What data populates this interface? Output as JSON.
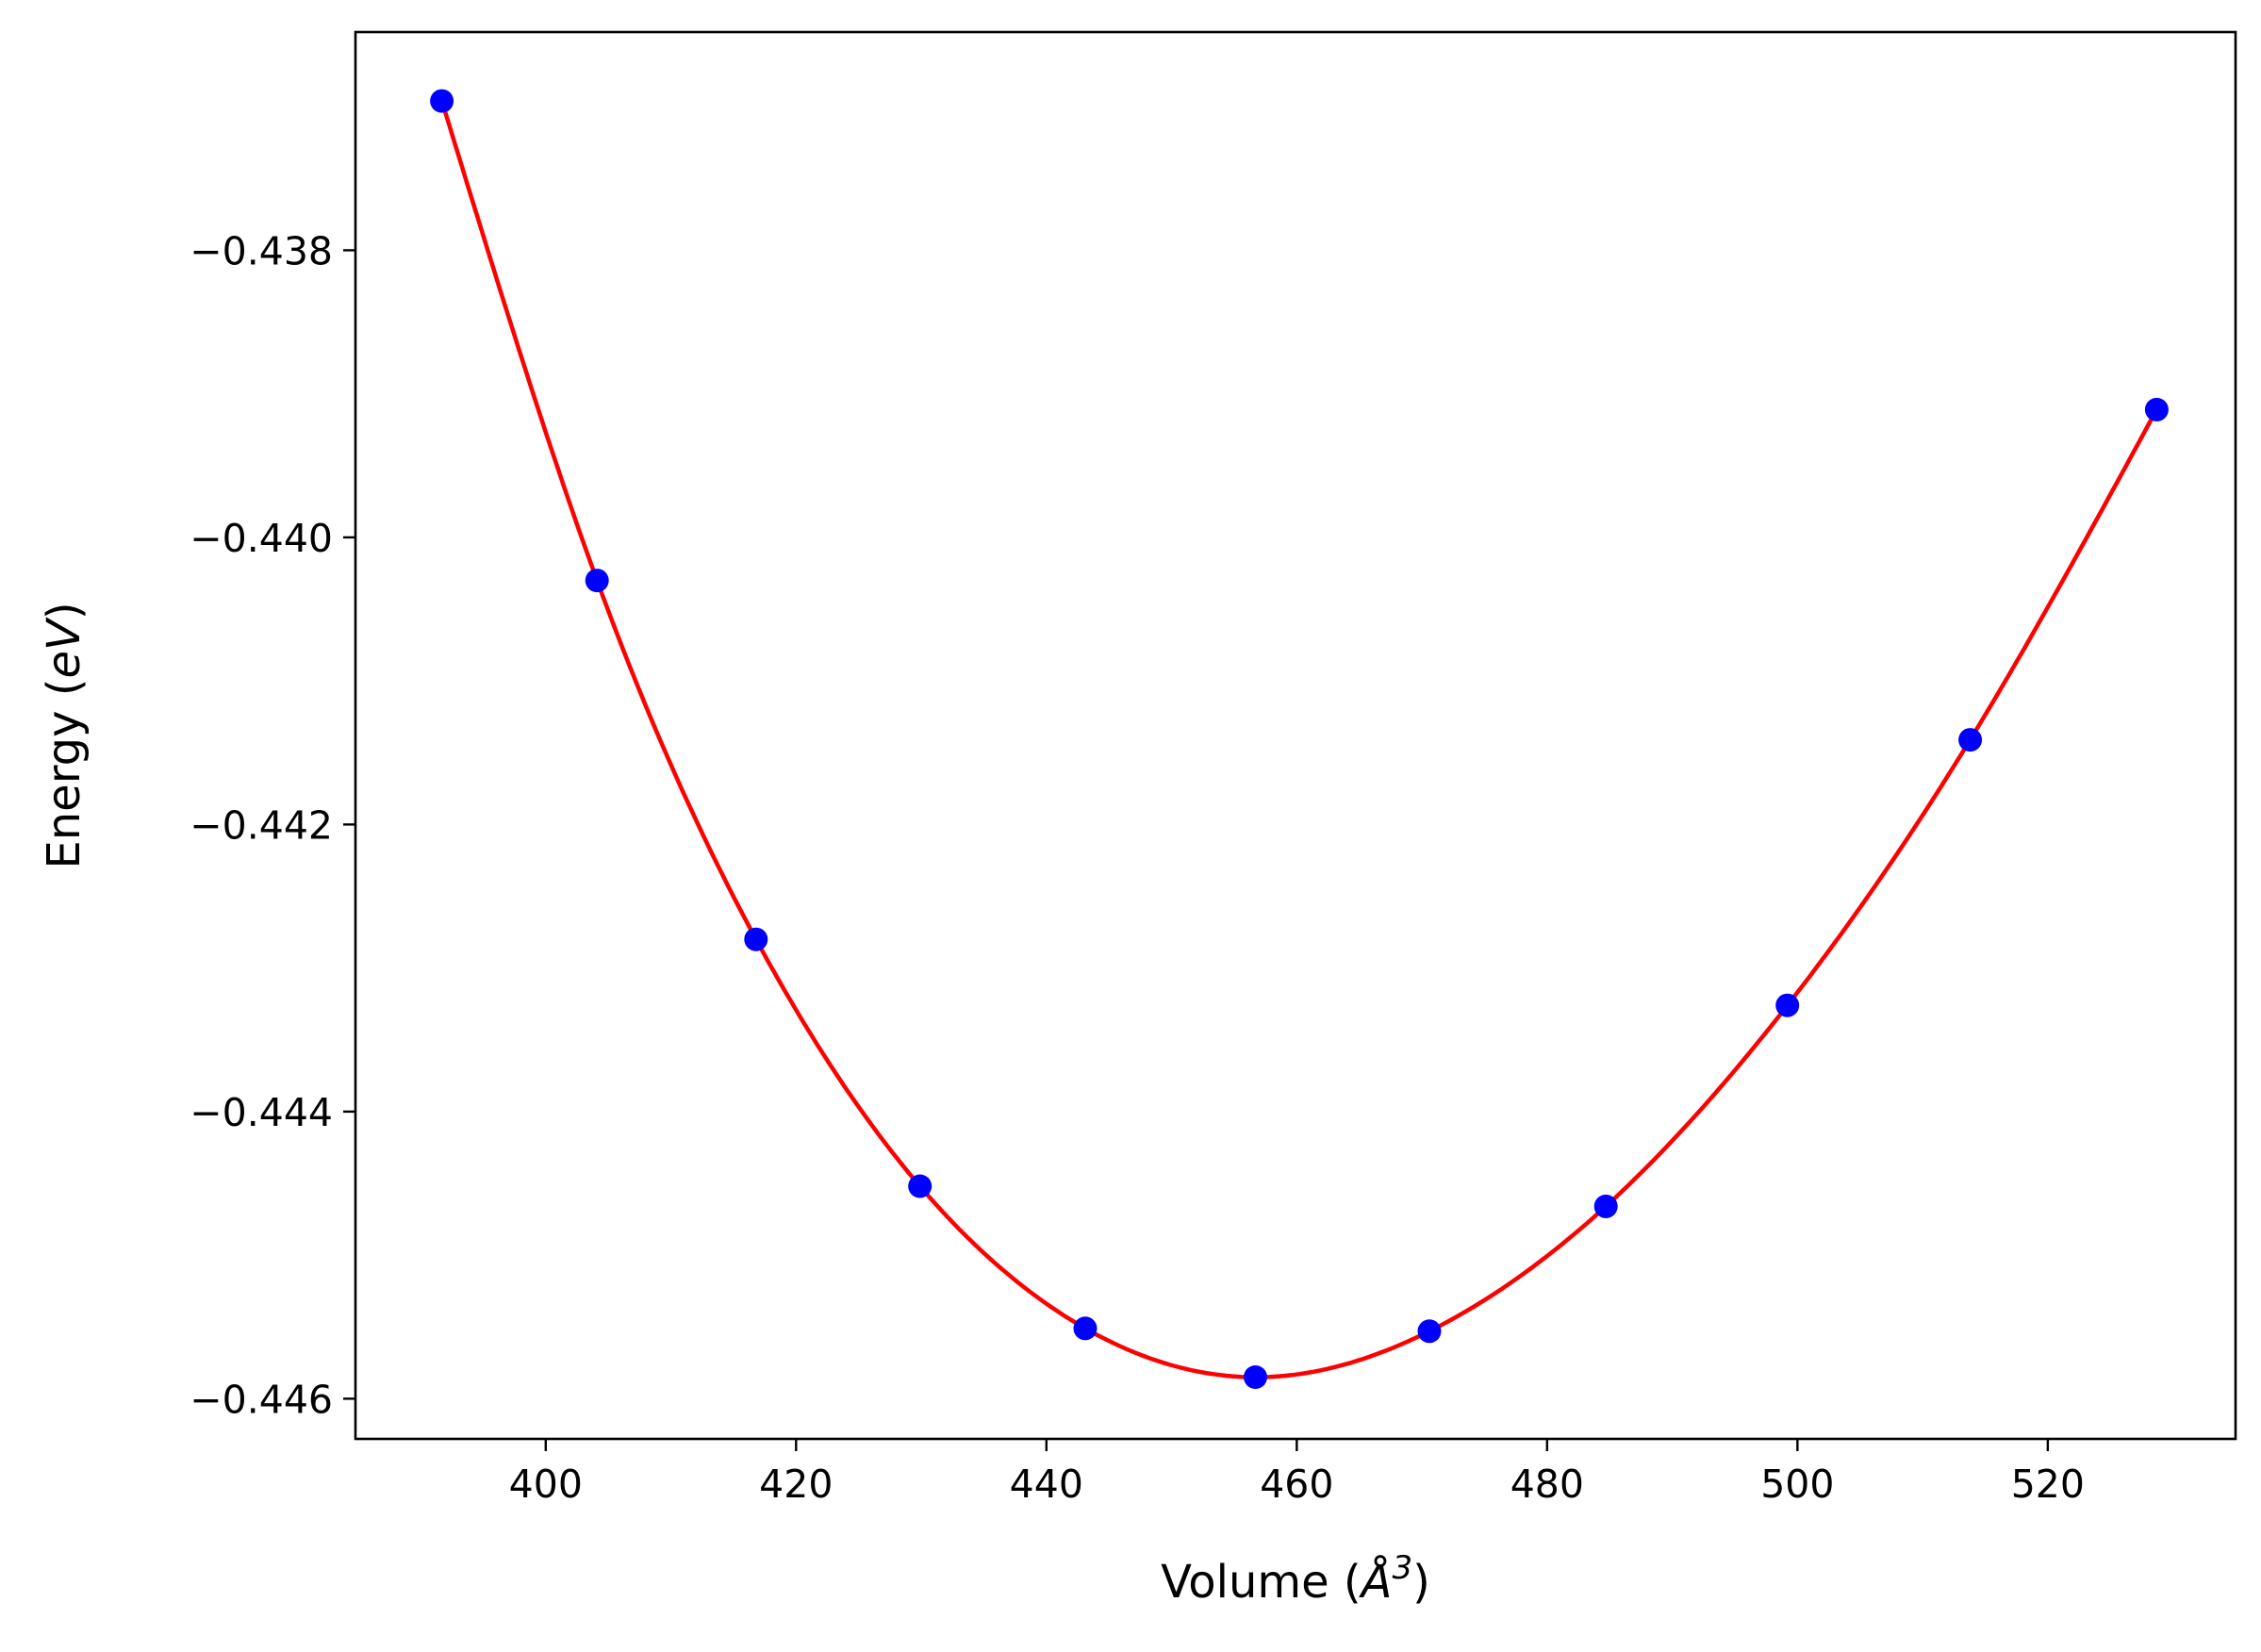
{
  "chart_data": {
    "type": "scatter",
    "xlabel": {
      "text": "Volume (",
      "symbol": "Å",
      "sup": "3",
      "close": ")"
    },
    "ylabel": {
      "text": "Energy (",
      "unit": "eV",
      "close": ")"
    },
    "xlim": [
      384.8,
      535.0
    ],
    "ylim": [
      -0.44628,
      -0.43648
    ],
    "grid": false,
    "xticks": [
      400,
      420,
      440,
      460,
      480,
      500,
      520
    ],
    "xtick_labels": [
      "400",
      "420",
      "440",
      "460",
      "480",
      "500",
      "520"
    ],
    "yticks": [
      -0.438,
      -0.44,
      -0.442,
      -0.444,
      -0.446
    ],
    "ytick_labels": [
      "−0.438",
      "−0.440",
      "−0.442",
      "−0.444",
      "−0.446"
    ],
    "series": [
      {
        "kind": "points",
        "color": "#0000ff",
        "x": [
          391.7,
          404.1,
          416.8,
          429.9,
          443.1,
          456.7,
          470.6,
          484.7,
          499.2,
          513.8,
          528.7
        ],
        "y": [
          -0.43696,
          -0.4403,
          -0.4428,
          -0.44452,
          -0.44551,
          -0.44585,
          -0.44553,
          -0.44466,
          -0.44326,
          -0.44141,
          -0.43911
        ]
      },
      {
        "kind": "fit-curve",
        "color": "#ff0000",
        "fit": "cubic-interpolation-through-points"
      }
    ]
  }
}
